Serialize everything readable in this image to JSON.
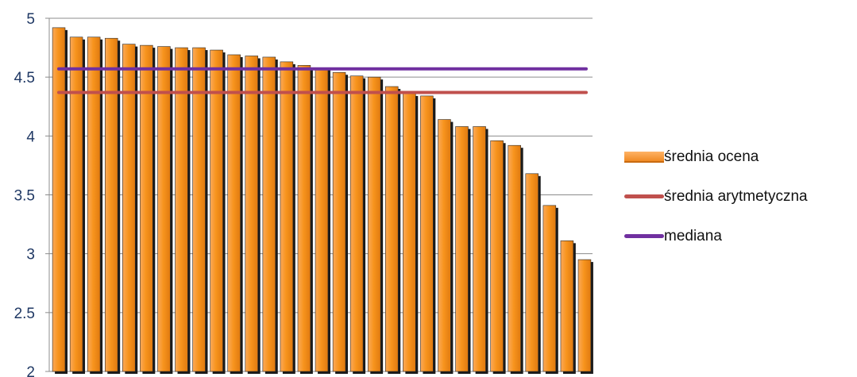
{
  "chart_data": {
    "type": "bar",
    "y_ticks": [
      "5",
      "4.5",
      "4",
      "3.5",
      "3",
      "2.5",
      "2"
    ],
    "ylim": [
      2,
      5
    ],
    "grid": "horizontal",
    "legend_position": "right",
    "series": [
      {
        "name": "średnia ocena",
        "type": "bar",
        "color": "#f7941d",
        "values": [
          4.92,
          4.84,
          4.84,
          4.83,
          4.78,
          4.77,
          4.76,
          4.75,
          4.75,
          4.73,
          4.69,
          4.68,
          4.67,
          4.63,
          4.6,
          4.58,
          4.54,
          4.51,
          4.5,
          4.42,
          4.36,
          4.34,
          4.14,
          4.08,
          4.08,
          3.96,
          3.92,
          3.68,
          3.41,
          3.11,
          2.95
        ]
      },
      {
        "name": "średnia arytmetyczna",
        "type": "line",
        "color": "#c0504d",
        "value": 4.37
      },
      {
        "name": "mediana",
        "type": "line",
        "color": "#7030a0",
        "value": 4.57
      }
    ]
  },
  "legend": {
    "bar_label": "średnia ocena",
    "mean_label": "średnia arytmetyczna",
    "median_label": "mediana"
  }
}
